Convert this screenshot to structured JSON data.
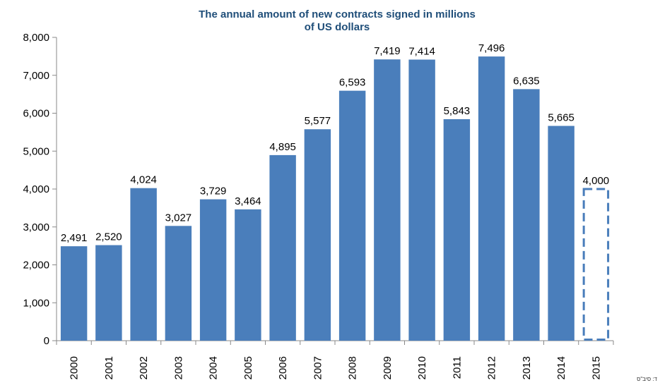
{
  "chart_data": {
    "type": "bar",
    "title": "The annual amount of new contracts signed in millions of US dollars",
    "title_lines": [
      "The annual amount of new contracts signed in millions",
      "of US dollars"
    ],
    "categories": [
      "2000",
      "2001",
      "2002",
      "2003",
      "2004",
      "2005",
      "2006",
      "2007",
      "2008",
      "2009",
      "2010",
      "2011",
      "2012",
      "2013",
      "2014",
      "2015"
    ],
    "values": [
      2491,
      2520,
      4024,
      3027,
      3729,
      3464,
      4895,
      5577,
      6593,
      7419,
      7414,
      5843,
      7496,
      6635,
      5665,
      4000
    ],
    "data_labels": [
      "2,491",
      "2,520",
      "4,024",
      "3,027",
      "3,729",
      "3,464",
      "4,895",
      "5,577",
      "6,593",
      "7,419",
      "7,414",
      "5,843",
      "7,496",
      "6,635",
      "5,665",
      "4,000"
    ],
    "estimated": [
      false,
      false,
      false,
      false,
      false,
      false,
      false,
      false,
      false,
      false,
      false,
      false,
      false,
      false,
      false,
      true
    ],
    "ylim": [
      0,
      8000
    ],
    "yticks": [
      0,
      1000,
      2000,
      3000,
      4000,
      5000,
      6000,
      7000,
      8000
    ],
    "ytick_labels": [
      "0",
      "1,000",
      "2,000",
      "3,000",
      "4,000",
      "5,000",
      "6,000",
      "7,000",
      "8,000"
    ],
    "xlabel": "",
    "ylabel": "",
    "grid": false,
    "legend": "none",
    "colors": {
      "bar": "#4a7ebb",
      "bar_estimated_outline": "#4a7ebb",
      "title": "#1f4e79"
    }
  },
  "source_note": "ד: סיב\"ס"
}
